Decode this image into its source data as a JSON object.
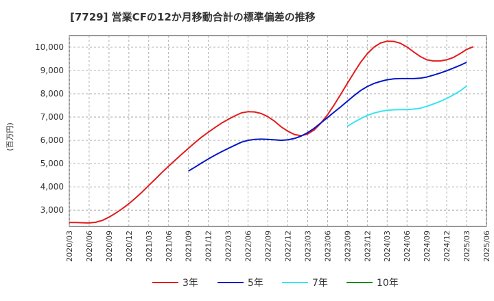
{
  "chart_data": {
    "type": "line",
    "title": "[7729]  営業CFの12か月移動合計の標準偏差の推移",
    "ylabel": "(百万円)",
    "xlabel": "",
    "ylim": [
      2300,
      10500
    ],
    "yticks": [
      3000,
      4000,
      5000,
      6000,
      7000,
      8000,
      9000,
      10000
    ],
    "ytick_labels": [
      "3,000",
      "4,000",
      "5,000",
      "6,000",
      "7,000",
      "8,000",
      "9,000",
      "10,000"
    ],
    "xticks": [
      "2020/03",
      "2020/06",
      "2020/09",
      "2020/12",
      "2021/03",
      "2021/06",
      "2021/09",
      "2021/12",
      "2022/03",
      "2022/06",
      "2022/09",
      "2022/12",
      "2023/03",
      "2023/06",
      "2023/09",
      "2023/12",
      "2024/03",
      "2024/06",
      "2024/09",
      "2024/12",
      "2025/03",
      "2025/06"
    ],
    "grid": true,
    "legend_position": "bottom",
    "series": [
      {
        "name": "3年",
        "color": "#e31a1c",
        "points": [
          [
            "2020/03",
            2470
          ],
          [
            "2020/04",
            2470
          ],
          [
            "2020/05",
            2460
          ],
          [
            "2020/06",
            2450
          ],
          [
            "2020/07",
            2480
          ],
          [
            "2020/08",
            2560
          ],
          [
            "2020/09",
            2700
          ],
          [
            "2020/10",
            2870
          ],
          [
            "2020/11",
            3060
          ],
          [
            "2020/12",
            3280
          ],
          [
            "2021/01",
            3520
          ],
          [
            "2021/02",
            3780
          ],
          [
            "2021/03",
            4060
          ],
          [
            "2021/04",
            4340
          ],
          [
            "2021/05",
            4620
          ],
          [
            "2021/06",
            4890
          ],
          [
            "2021/07",
            5150
          ],
          [
            "2021/08",
            5410
          ],
          [
            "2021/09",
            5660
          ],
          [
            "2021/10",
            5910
          ],
          [
            "2021/11",
            6140
          ],
          [
            "2021/12",
            6350
          ],
          [
            "2022/01",
            6550
          ],
          [
            "2022/02",
            6740
          ],
          [
            "2022/03",
            6900
          ],
          [
            "2022/04",
            7050
          ],
          [
            "2022/05",
            7180
          ],
          [
            "2022/06",
            7230
          ],
          [
            "2022/07",
            7220
          ],
          [
            "2022/08",
            7150
          ],
          [
            "2022/09",
            7010
          ],
          [
            "2022/10",
            6820
          ],
          [
            "2022/11",
            6580
          ],
          [
            "2022/12",
            6390
          ],
          [
            "2023/01",
            6250
          ],
          [
            "2023/02",
            6200
          ],
          [
            "2023/03",
            6270
          ],
          [
            "2023/04",
            6450
          ],
          [
            "2023/05",
            6740
          ],
          [
            "2023/06",
            7100
          ],
          [
            "2023/07",
            7520
          ],
          [
            "2023/08",
            7980
          ],
          [
            "2023/09",
            8450
          ],
          [
            "2023/10",
            8910
          ],
          [
            "2023/11",
            9350
          ],
          [
            "2023/12",
            9720
          ],
          [
            "2024/01",
            10000
          ],
          [
            "2024/02",
            10180
          ],
          [
            "2024/03",
            10260
          ],
          [
            "2024/04",
            10250
          ],
          [
            "2024/05",
            10170
          ],
          [
            "2024/06",
            10010
          ],
          [
            "2024/07",
            9800
          ],
          [
            "2024/08",
            9600
          ],
          [
            "2024/09",
            9460
          ],
          [
            "2024/10",
            9410
          ],
          [
            "2024/11",
            9410
          ],
          [
            "2024/12",
            9460
          ],
          [
            "2025/01",
            9560
          ],
          [
            "2025/02",
            9720
          ],
          [
            "2025/03",
            9900
          ],
          [
            "2025/04",
            10020
          ]
        ]
      },
      {
        "name": "5年",
        "color": "#0015c9",
        "points": [
          [
            "2021/09",
            4680
          ],
          [
            "2021/10",
            4850
          ],
          [
            "2021/11",
            5030
          ],
          [
            "2021/12",
            5200
          ],
          [
            "2022/01",
            5360
          ],
          [
            "2022/02",
            5510
          ],
          [
            "2022/03",
            5650
          ],
          [
            "2022/04",
            5790
          ],
          [
            "2022/05",
            5920
          ],
          [
            "2022/06",
            6000
          ],
          [
            "2022/07",
            6040
          ],
          [
            "2022/08",
            6050
          ],
          [
            "2022/09",
            6040
          ],
          [
            "2022/10",
            6020
          ],
          [
            "2022/11",
            6000
          ],
          [
            "2022/12",
            6020
          ],
          [
            "2023/01",
            6080
          ],
          [
            "2023/02",
            6180
          ],
          [
            "2023/03",
            6330
          ],
          [
            "2023/04",
            6520
          ],
          [
            "2023/05",
            6750
          ],
          [
            "2023/06",
            6980
          ],
          [
            "2023/07",
            7210
          ],
          [
            "2023/08",
            7440
          ],
          [
            "2023/09",
            7680
          ],
          [
            "2023/10",
            7920
          ],
          [
            "2023/11",
            8140
          ],
          [
            "2023/12",
            8310
          ],
          [
            "2024/01",
            8440
          ],
          [
            "2024/02",
            8530
          ],
          [
            "2024/03",
            8600
          ],
          [
            "2024/04",
            8640
          ],
          [
            "2024/05",
            8650
          ],
          [
            "2024/06",
            8650
          ],
          [
            "2024/07",
            8650
          ],
          [
            "2024/08",
            8670
          ],
          [
            "2024/09",
            8720
          ],
          [
            "2024/10",
            8800
          ],
          [
            "2024/11",
            8890
          ],
          [
            "2024/12",
            8990
          ],
          [
            "2025/01",
            9100
          ],
          [
            "2025/02",
            9220
          ],
          [
            "2025/03",
            9350
          ]
        ]
      },
      {
        "name": "7年",
        "color": "#33e6f0",
        "points": [
          [
            "2023/09",
            6600
          ],
          [
            "2023/10",
            6780
          ],
          [
            "2023/11",
            6930
          ],
          [
            "2023/12",
            7070
          ],
          [
            "2024/01",
            7170
          ],
          [
            "2024/02",
            7240
          ],
          [
            "2024/03",
            7290
          ],
          [
            "2024/04",
            7310
          ],
          [
            "2024/05",
            7320
          ],
          [
            "2024/06",
            7320
          ],
          [
            "2024/07",
            7340
          ],
          [
            "2024/08",
            7380
          ],
          [
            "2024/09",
            7460
          ],
          [
            "2024/10",
            7560
          ],
          [
            "2024/11",
            7670
          ],
          [
            "2024/12",
            7800
          ],
          [
            "2025/01",
            7950
          ],
          [
            "2025/02",
            8120
          ],
          [
            "2025/03",
            8330
          ]
        ]
      },
      {
        "name": "10年",
        "color": "#1c8a1c",
        "points": []
      }
    ]
  }
}
